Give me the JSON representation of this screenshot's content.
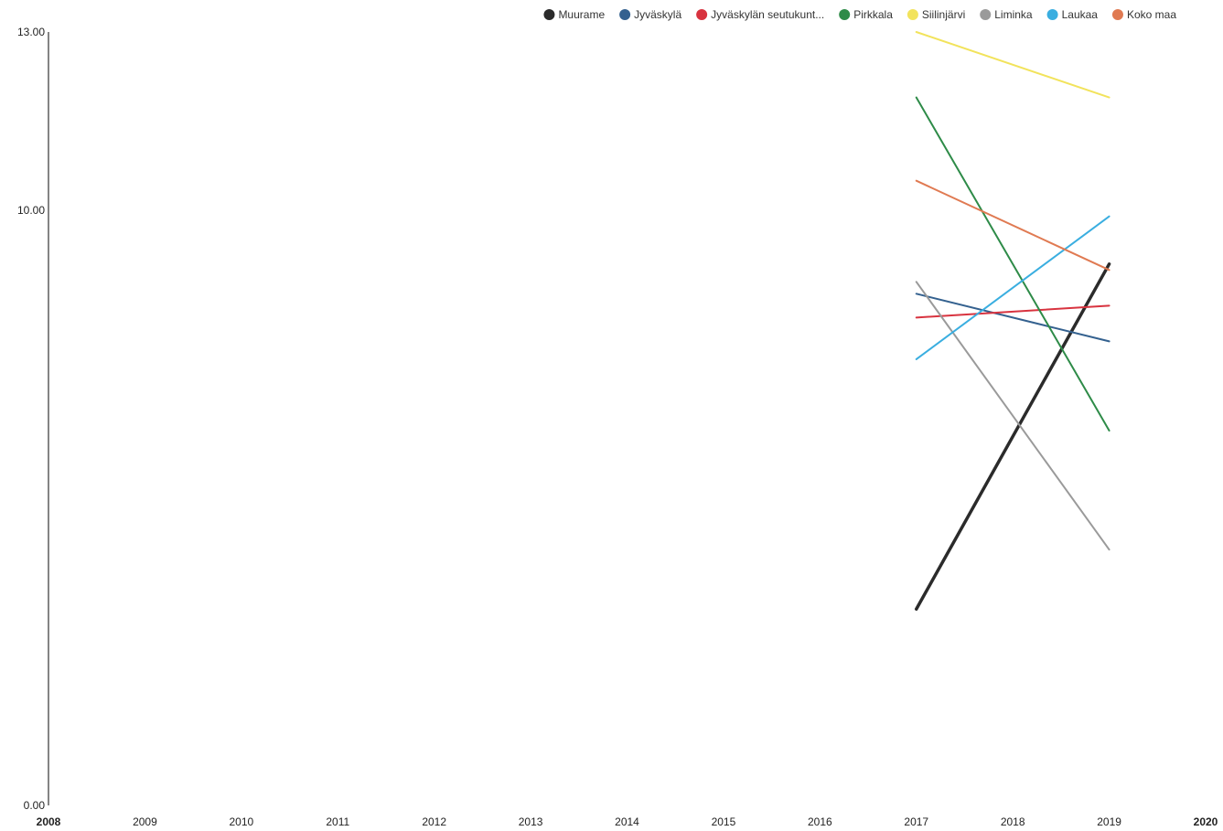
{
  "chart_data": {
    "type": "line",
    "title": "",
    "xlabel": "",
    "ylabel": "",
    "xlim": [
      2008,
      2020
    ],
    "ylim": [
      0,
      13
    ],
    "x_ticks": [
      2008,
      2009,
      2010,
      2011,
      2012,
      2013,
      2014,
      2015,
      2016,
      2017,
      2018,
      2019,
      2020
    ],
    "y_ticks": [
      "0.00",
      "10.00",
      "13.00"
    ],
    "y_tick_values": [
      0,
      10,
      13
    ],
    "legend_position": "top-right",
    "grid": false,
    "series": [
      {
        "name": "Muurame",
        "color": "#2b2b2b",
        "x": [
          2017,
          2019
        ],
        "values": [
          3.3,
          9.1
        ]
      },
      {
        "name": "Jyväskylä",
        "color": "#34618f",
        "x": [
          2017,
          2019
        ],
        "values": [
          8.6,
          7.8
        ]
      },
      {
        "name": "Jyväskylän seutukunt...",
        "color": "#d8333f",
        "x": [
          2017,
          2019
        ],
        "values": [
          8.2,
          8.4
        ]
      },
      {
        "name": "Pirkkala",
        "color": "#2e8b48",
        "x": [
          2017,
          2019
        ],
        "values": [
          11.9,
          6.3
        ]
      },
      {
        "name": "Siilinjärvi",
        "color": "#f2e35c",
        "x": [
          2017,
          2019
        ],
        "values": [
          13.0,
          11.9
        ]
      },
      {
        "name": "Liminka",
        "color": "#9a9a9a",
        "x": [
          2017,
          2019
        ],
        "values": [
          8.8,
          4.3
        ]
      },
      {
        "name": "Laukaa",
        "color": "#3aaee0",
        "x": [
          2017,
          2019
        ],
        "values": [
          7.5,
          9.9
        ]
      },
      {
        "name": "Koko maa",
        "color": "#e07a52",
        "x": [
          2017,
          2019
        ],
        "values": [
          10.5,
          9.0
        ]
      }
    ]
  }
}
